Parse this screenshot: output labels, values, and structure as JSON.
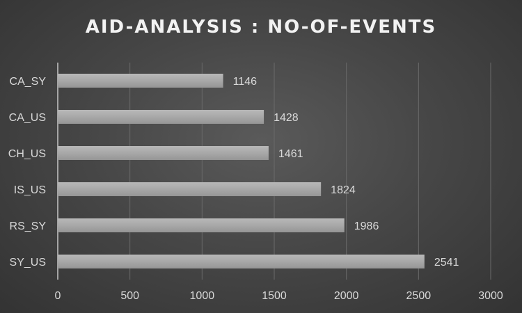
{
  "chart_data": {
    "type": "bar",
    "orientation": "horizontal",
    "title": "AID-ANALYSIS : NO-OF-EVENTS",
    "categories": [
      "CA_SY",
      "CA_US",
      "CH_US",
      "IS_US",
      "RS_SY",
      "SY_US"
    ],
    "values": [
      1146,
      1428,
      1461,
      1824,
      1986,
      2541
    ],
    "xlim": [
      0,
      3000
    ],
    "x_ticks": [
      0,
      500,
      1000,
      1500,
      2000,
      2500,
      3000
    ],
    "grid": true,
    "data_labels": true,
    "bar_color": "#a6a6a6",
    "text_color": "#d9d9d9",
    "background_color": "#404040"
  }
}
